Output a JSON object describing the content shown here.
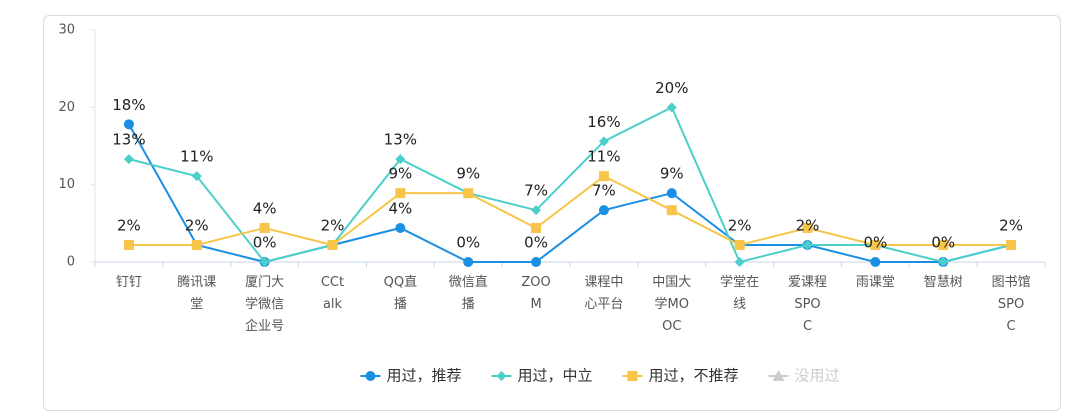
{
  "chart_data": {
    "type": "line",
    "categories": [
      "钉钉",
      "腾讯课堂",
      "厦门大学微信企业号",
      "CCtalk",
      "QQ直播",
      "微信直播",
      "ZOOM",
      "课程中心平台",
      "中国大学MOOC",
      "学堂在线",
      "爱课程SPOC",
      "雨课堂",
      "智慧树",
      "图书馆SPOC"
    ],
    "series": [
      {
        "name": "用过，推荐",
        "color": "#1a8fe3",
        "marker": "circle",
        "values": [
          17.8,
          2.2,
          0,
          2.2,
          4.4,
          0,
          0,
          6.7,
          8.9,
          2.2,
          2.2,
          0,
          0,
          2.2
        ],
        "value_labels": [
          "18%",
          "2%",
          "0%",
          "2%",
          "4%",
          "0%",
          "0%",
          "7%",
          "9%",
          "2%",
          "2%",
          "0%",
          "0%",
          "2%"
        ]
      },
      {
        "name": "用过，中立",
        "color": "#4ccfcb",
        "marker": "diamond",
        "values": [
          13.3,
          11.1,
          0,
          2.2,
          13.3,
          8.9,
          6.7,
          15.6,
          20.0,
          0,
          2.2,
          2.2,
          0,
          2.2
        ],
        "value_labels": [
          "13%",
          "11%",
          null,
          null,
          "13%",
          "9%",
          "7%",
          "16%",
          "20%",
          null,
          null,
          null,
          null,
          null
        ]
      },
      {
        "name": "用过，不推荐",
        "color": "#f7c54a",
        "marker": "square",
        "values": [
          2.2,
          2.2,
          4.4,
          2.2,
          8.9,
          8.9,
          4.4,
          11.1,
          6.7,
          2.2,
          4.4,
          2.2,
          2.2,
          2.2
        ],
        "value_labels": [
          "2%",
          null,
          "4%",
          null,
          "9%",
          null,
          null,
          "11%",
          null,
          null,
          null,
          null,
          null,
          null
        ]
      },
      {
        "name": "没用过",
        "color": "#cccccc",
        "marker": "triangle",
        "hidden": true,
        "values": [
          null,
          null,
          null,
          null,
          null,
          null,
          null,
          null,
          null,
          null,
          null,
          null,
          null,
          null
        ]
      }
    ],
    "ylim": [
      0,
      30
    ],
    "yticks": [
      0,
      10,
      20,
      30
    ],
    "grid": false,
    "legend": "bottom"
  }
}
